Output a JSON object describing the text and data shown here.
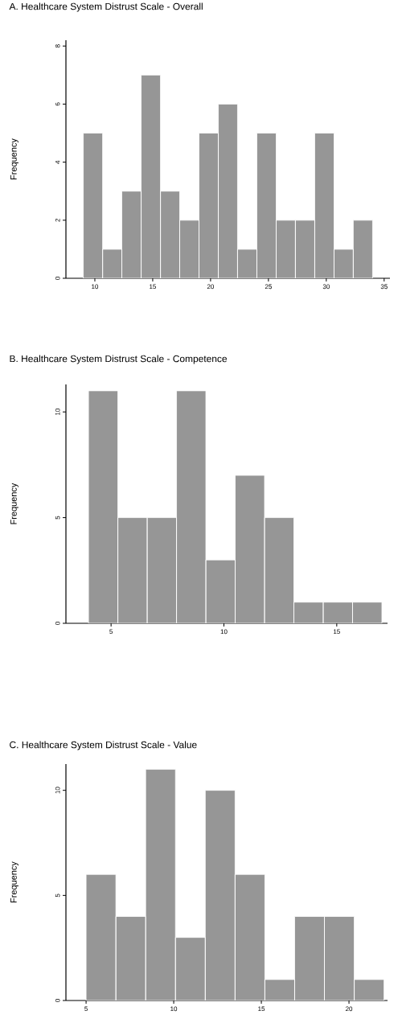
{
  "chart_data": [
    {
      "type": "histogram",
      "title": "A. Healthcare System Distrust Scale - Overall",
      "ylabel": "Frequency",
      "color": "#969696",
      "bins": [
        9,
        10.67,
        12.33,
        14,
        15.67,
        17.33,
        19,
        20.67,
        22.33,
        24,
        25.67,
        27.33,
        29,
        30.67,
        32.33,
        34
      ],
      "values": [
        5,
        1,
        3,
        7,
        3,
        2,
        5,
        6,
        1,
        5,
        2,
        2,
        5,
        1,
        2
      ],
      "xlim": [
        7.5,
        35.5
      ],
      "xticks": [
        10,
        15,
        20,
        25,
        30,
        35
      ],
      "ylim": [
        0,
        8.2
      ],
      "yticks": [
        0,
        2,
        4,
        6,
        8
      ]
    },
    {
      "type": "histogram",
      "title": "B. Healthcare System Distrust Scale - Competence",
      "ylabel": "Frequency",
      "color": "#969696",
      "bins": [
        4,
        5.3,
        6.6,
        7.9,
        9.2,
        10.5,
        11.8,
        13.1,
        14.4,
        15.7,
        17
      ],
      "values": [
        11,
        5,
        5,
        11,
        3,
        7,
        5,
        1,
        1,
        1
      ],
      "xlim": [
        3,
        17.25
      ],
      "xticks": [
        5,
        10,
        15
      ],
      "ylim": [
        0,
        11.3
      ],
      "yticks": [
        0,
        5,
        10
      ]
    },
    {
      "type": "histogram",
      "title": "C. Healthcare System Distrust Scale - Value",
      "ylabel": "Frequency",
      "color": "#969696",
      "bins": [
        5,
        6.7,
        8.4,
        10.1,
        11.8,
        13.5,
        15.2,
        16.9,
        18.6,
        20.3,
        22
      ],
      "values": [
        6,
        4,
        11,
        3,
        10,
        6,
        1,
        4,
        4,
        1
      ],
      "xlim": [
        3.85,
        22.2
      ],
      "xticks": [
        5,
        10,
        15,
        20
      ],
      "ylim": [
        0,
        11.25
      ],
      "yticks": [
        0,
        5,
        10
      ]
    }
  ]
}
